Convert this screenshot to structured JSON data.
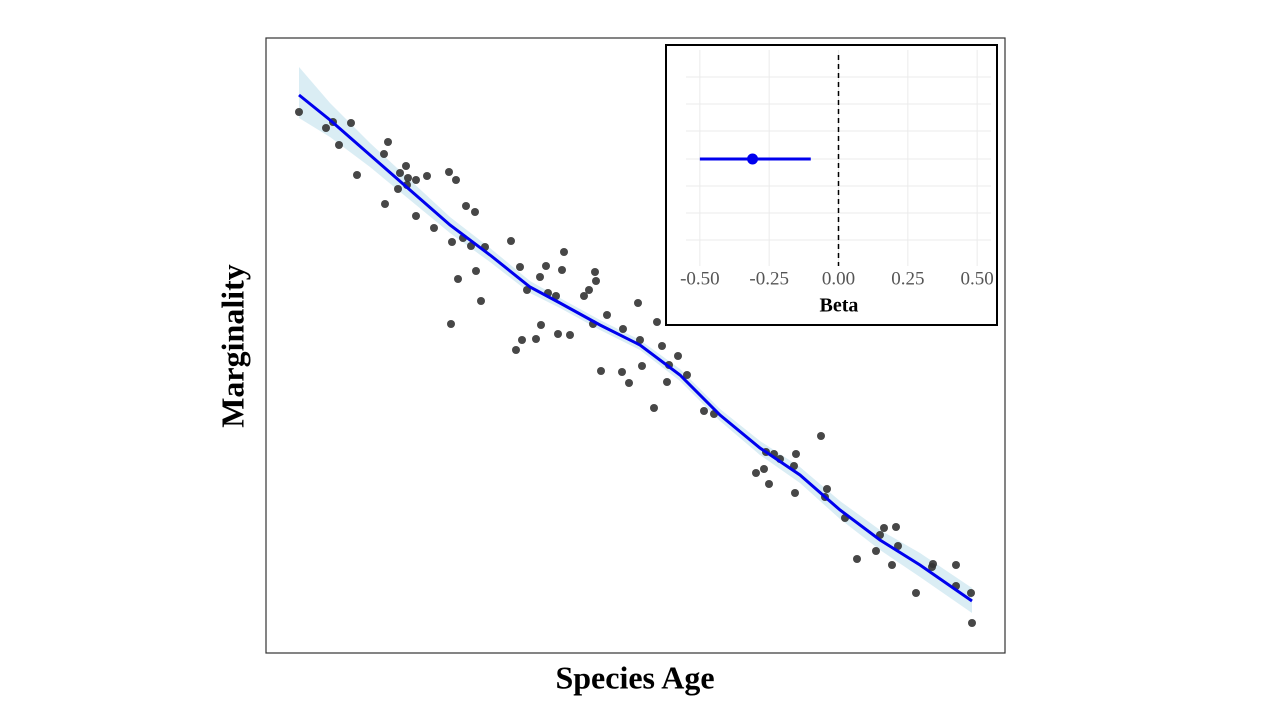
{
  "chart_data": [
    {
      "type": "scatter",
      "xlabel": "Species Age",
      "ylabel": "Marginality",
      "xlim": [
        0,
        739
      ],
      "ylim": [
        0,
        615
      ],
      "point_color": "#333333",
      "x": [
        33,
        60,
        67,
        73,
        85,
        91,
        118,
        122,
        119,
        132,
        134,
        140,
        141,
        142,
        150,
        150,
        161,
        168,
        183,
        190,
        186,
        200,
        209,
        197,
        205,
        219,
        210,
        192,
        185,
        215,
        245,
        254,
        261,
        250,
        256,
        270,
        274,
        275,
        280,
        282,
        290,
        296,
        298,
        292,
        304,
        318,
        323,
        329,
        330,
        341,
        327,
        335,
        357,
        356,
        363,
        372,
        374,
        376,
        388,
        391,
        396,
        401,
        403,
        412,
        421,
        438,
        448,
        490,
        498,
        500,
        503,
        508,
        514,
        528,
        530,
        529,
        555,
        559,
        561,
        579,
        591,
        610,
        614,
        618,
        626,
        630,
        632,
        650,
        666,
        667,
        690,
        690,
        705,
        706
      ],
      "values": [
        541,
        525,
        531,
        508,
        530,
        478,
        499,
        511,
        449,
        464,
        480,
        487,
        468,
        475,
        473,
        437,
        477,
        425,
        481,
        473,
        411,
        447,
        441,
        415,
        407,
        406,
        382,
        374,
        329,
        352,
        412,
        386,
        363,
        303,
        313,
        314,
        376,
        328,
        387,
        360,
        357,
        383,
        401,
        319,
        318,
        357,
        363,
        381,
        372,
        338,
        329,
        282,
        324,
        281,
        270,
        350,
        313,
        287,
        245,
        331,
        307,
        271,
        288,
        297,
        278,
        242,
        239,
        180,
        184,
        201,
        169,
        199,
        194,
        187,
        199,
        160,
        217,
        156,
        164,
        135,
        94,
        102,
        118,
        125,
        88,
        126,
        107,
        60,
        86,
        89,
        88,
        67,
        60,
        30
      ],
      "fit": {
        "color": "#0000ee",
        "band_color": "#add8e6",
        "x": [
          33,
          64,
          104,
          144,
          184,
          224,
          264,
          294,
          334,
          374,
          414,
          454,
          494,
          534,
          574,
          614,
          654,
          706
        ],
        "values": [
          558,
          533,
          498,
          463,
          428,
          398,
          366,
          350,
          328,
          308,
          278,
          238,
          205,
          178,
          143,
          113,
          88,
          52
        ],
        "lower": [
          535,
          516,
          486,
          453,
          420,
          391,
          360,
          345,
          323,
          303,
          272,
          232,
          198,
          170,
          134,
          103,
          76,
          40
        ],
        "upper": [
          586,
          550,
          510,
          473,
          436,
          405,
          372,
          355,
          333,
          313,
          284,
          244,
          212,
          186,
          152,
          123,
          100,
          65
        ]
      }
    },
    {
      "type": "forest",
      "xlabel": "Beta",
      "xlim": [
        -0.55,
        0.55
      ],
      "xticks": [
        {
          "value": -0.5,
          "label": "-0.50"
        },
        {
          "value": -0.25,
          "label": "-0.25"
        },
        {
          "value": 0,
          "label": "0.00"
        },
        {
          "value": 0.25,
          "label": "0.25"
        },
        {
          "value": 0.5,
          "label": "0.50"
        }
      ],
      "estimate": -0.31,
      "ci": [
        -0.5,
        -0.1
      ],
      "reference_line": 0,
      "color": "#0000ee",
      "grid": true
    }
  ]
}
